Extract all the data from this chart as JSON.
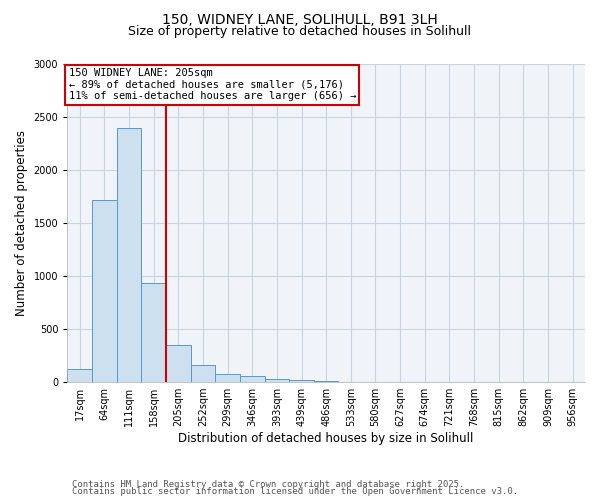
{
  "title_line1": "150, WIDNEY LANE, SOLIHULL, B91 3LH",
  "title_line2": "Size of property relative to detached houses in Solihull",
  "xlabel": "Distribution of detached houses by size in Solihull",
  "ylabel": "Number of detached properties",
  "categories": [
    "17sqm",
    "64sqm",
    "111sqm",
    "158sqm",
    "205sqm",
    "252sqm",
    "299sqm",
    "346sqm",
    "393sqm",
    "439sqm",
    "486sqm",
    "533sqm",
    "580sqm",
    "627sqm",
    "674sqm",
    "721sqm",
    "768sqm",
    "815sqm",
    "862sqm",
    "909sqm",
    "956sqm"
  ],
  "values": [
    120,
    1720,
    2400,
    930,
    350,
    160,
    80,
    55,
    30,
    15,
    8,
    5,
    3,
    2,
    1,
    1,
    0,
    0,
    0,
    0,
    0
  ],
  "bar_color": "#cce0f0",
  "bar_edge_color": "#5599cc",
  "red_line_index": 4,
  "annotation_line1": "150 WIDNEY LANE: 205sqm",
  "annotation_line2": "← 89% of detached houses are smaller (5,176)",
  "annotation_line3": "11% of semi-detached houses are larger (656) →",
  "annotation_box_color": "#cc0000",
  "ylim": [
    0,
    3000
  ],
  "yticks": [
    0,
    500,
    1000,
    1500,
    2000,
    2500,
    3000
  ],
  "footer_line1": "Contains HM Land Registry data © Crown copyright and database right 2025.",
  "footer_line2": "Contains public sector information licensed under the Open Government Licence v3.0.",
  "bg_color": "#f0f4f8",
  "grid_color": "#c8d4e0",
  "title_fontsize": 10,
  "subtitle_fontsize": 9,
  "axis_label_fontsize": 8.5,
  "tick_fontsize": 7,
  "annotation_fontsize": 7.5,
  "footer_fontsize": 6.5
}
